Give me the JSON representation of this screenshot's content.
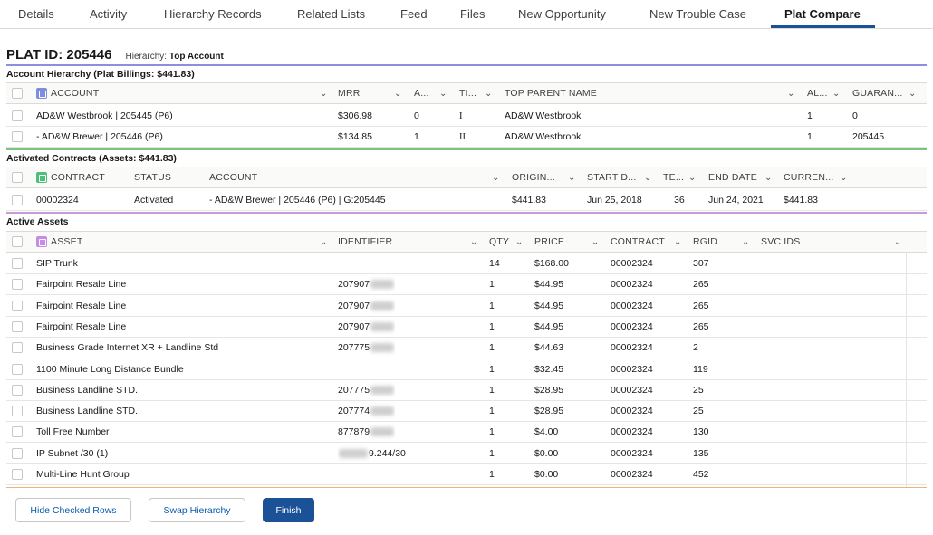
{
  "tabs": [
    {
      "label": "Details",
      "active": false
    },
    {
      "label": "Activity",
      "active": false
    },
    {
      "label": "Hierarchy Records",
      "active": false
    },
    {
      "label": "Related Lists",
      "active": false
    },
    {
      "label": "Feed",
      "active": false
    },
    {
      "label": "Files",
      "active": false
    },
    {
      "label": "New Opportunity",
      "active": false
    },
    {
      "label": "New Trouble Case",
      "active": false
    },
    {
      "label": "Plat Compare",
      "active": true
    }
  ],
  "plat": {
    "id_label": "PLAT ID: 205446",
    "hierarchy_prefix": "Hierarchy:",
    "hierarchy_value": "Top Account"
  },
  "colors": {
    "accent": "#1b5297",
    "rule_hierarchy": "#8c8fe0",
    "rule_contracts": "#79c37a",
    "rule_assets": "#c79ad9",
    "rule_footer": "#f0b27a",
    "account_icon": "#7f8de1",
    "contract_icon": "#4bc076",
    "asset_icon": "#c78ce8"
  },
  "hierarchy": {
    "title": "Account Hierarchy (Plat Billings: $441.83)",
    "columns": [
      "ACCOUNT",
      "MRR",
      "A...",
      "TI...",
      "TOP PARENT NAME",
      "AL...",
      "GUARAN..."
    ],
    "account_icon": "account-icon",
    "rows": [
      {
        "account": "AD&W Westbrook | 205445 (P6)",
        "mrr": "$306.98",
        "a": "0",
        "ti": "I",
        "top_parent": "AD&W Westbrook",
        "al": "1",
        "guaran": "0"
      },
      {
        "account": "- AD&W Brewer | 205446 (P6)",
        "mrr": "$134.85",
        "a": "1",
        "ti": "II",
        "top_parent": "AD&W Westbrook",
        "al": "1",
        "guaran": "205445"
      }
    ]
  },
  "contracts": {
    "title": "Activated Contracts (Assets: $441.83)",
    "columns": [
      "CONTRACT",
      "STATUS",
      "ACCOUNT",
      "ORIGIN...",
      "START D...",
      "TE...",
      "END DATE",
      "CURREN..."
    ],
    "contract_icon": "contract-icon",
    "rows": [
      {
        "contract": "00002324",
        "status": "Activated",
        "account": "- AD&W Brewer | 205446 (P6) | G:205445",
        "origin": "$441.83",
        "start": "Jun 25, 2018",
        "term": "36",
        "end": "Jun 24, 2021",
        "current": "$441.83"
      }
    ]
  },
  "assets": {
    "title": "Active Assets",
    "columns": [
      "ASSET",
      "IDENTIFIER",
      "QTY",
      "PRICE",
      "CONTRACT",
      "RGID",
      "SVC IDS"
    ],
    "asset_icon": "asset-icon",
    "rows": [
      {
        "asset": "SIP Trunk",
        "identifier": "",
        "id_redacted": false,
        "qty": "14",
        "price": "$168.00",
        "contract": "00002324",
        "rgid": "307",
        "svc": ""
      },
      {
        "asset": "Fairpoint Resale Line",
        "identifier": "207907",
        "id_redacted": true,
        "qty": "1",
        "price": "$44.95",
        "contract": "00002324",
        "rgid": "265",
        "svc": ""
      },
      {
        "asset": "Fairpoint Resale Line",
        "identifier": "207907",
        "id_redacted": true,
        "qty": "1",
        "price": "$44.95",
        "contract": "00002324",
        "rgid": "265",
        "svc": ""
      },
      {
        "asset": "Fairpoint Resale Line",
        "identifier": "207907",
        "id_redacted": true,
        "qty": "1",
        "price": "$44.95",
        "contract": "00002324",
        "rgid": "265",
        "svc": ""
      },
      {
        "asset": "Business Grade Internet XR + Landline Std",
        "identifier": "207775",
        "id_redacted": true,
        "qty": "1",
        "price": "$44.63",
        "contract": "00002324",
        "rgid": "2",
        "svc": ""
      },
      {
        "asset": "1100 Minute Long Distance Bundle",
        "identifier": "",
        "id_redacted": false,
        "qty": "1",
        "price": "$32.45",
        "contract": "00002324",
        "rgid": "119",
        "svc": ""
      },
      {
        "asset": "Business Landline STD.",
        "identifier": "207775",
        "id_redacted": true,
        "qty": "1",
        "price": "$28.95",
        "contract": "00002324",
        "rgid": "25",
        "svc": ""
      },
      {
        "asset": "Business Landline STD.",
        "identifier": "207774",
        "id_redacted": true,
        "qty": "1",
        "price": "$28.95",
        "contract": "00002324",
        "rgid": "25",
        "svc": ""
      },
      {
        "asset": "Toll Free Number",
        "identifier": "877879",
        "id_redacted": true,
        "qty": "1",
        "price": "$4.00",
        "contract": "00002324",
        "rgid": "130",
        "svc": ""
      },
      {
        "asset": "IP Subnet /30 (1)",
        "identifier": "9.244/30",
        "id_redacted": true,
        "id_prefix_redacted": true,
        "qty": "1",
        "price": "$0.00",
        "contract": "00002324",
        "rgid": "135",
        "svc": ""
      },
      {
        "asset": "Multi-Line Hunt Group",
        "identifier": "",
        "id_redacted": false,
        "qty": "1",
        "price": "$0.00",
        "contract": "00002324",
        "rgid": "452",
        "svc": ""
      }
    ]
  },
  "buttons": {
    "hide_checked": "Hide Checked Rows",
    "swap_hierarchy": "Swap Hierarchy",
    "finish": "Finish"
  }
}
